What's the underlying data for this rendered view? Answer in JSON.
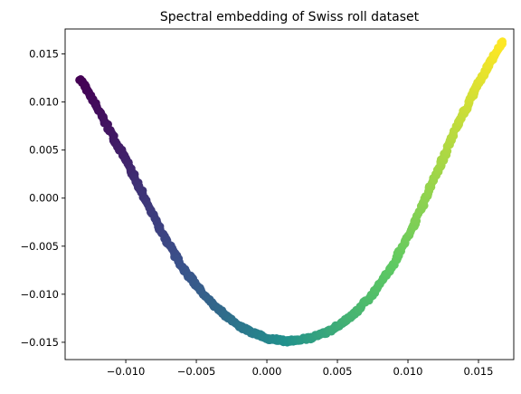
{
  "chart_data": {
    "type": "scatter",
    "title": "Spectral embedding of Swiss roll dataset",
    "xlabel": "",
    "ylabel": "",
    "xlim": [
      -0.0143,
      0.0175
    ],
    "ylim": [
      -0.0168,
      0.0176
    ],
    "xticks": [
      -0.01,
      -0.005,
      0.0,
      0.005,
      0.01,
      0.015
    ],
    "xtick_labels": [
      "−0.010",
      "−0.005",
      "0.000",
      "0.005",
      "0.010",
      "0.015"
    ],
    "yticks": [
      -0.015,
      -0.01,
      -0.005,
      0.0,
      0.005,
      0.01,
      0.015
    ],
    "ytick_labels": [
      "−0.015",
      "−0.010",
      "−0.005",
      "0.000",
      "0.005",
      "0.010",
      "0.015"
    ],
    "grid": false,
    "colormap": "viridis",
    "curve_points": [
      {
        "x": -0.0132,
        "y": 0.0124
      },
      {
        "x": -0.0115,
        "y": 0.008
      },
      {
        "x": -0.01,
        "y": 0.004
      },
      {
        "x": -0.009,
        "y": 0.001
      },
      {
        "x": -0.0075,
        "y": -0.0035
      },
      {
        "x": -0.006,
        "y": -0.0072
      },
      {
        "x": -0.0045,
        "y": -0.01
      },
      {
        "x": -0.003,
        "y": -0.0122
      },
      {
        "x": -0.0015,
        "y": -0.0137
      },
      {
        "x": 0.0,
        "y": -0.0146
      },
      {
        "x": 0.0015,
        "y": -0.0149
      },
      {
        "x": 0.003,
        "y": -0.0146
      },
      {
        "x": 0.0045,
        "y": -0.0138
      },
      {
        "x": 0.006,
        "y": -0.0123
      },
      {
        "x": 0.0075,
        "y": -0.01
      },
      {
        "x": 0.009,
        "y": -0.0068
      },
      {
        "x": 0.0105,
        "y": -0.0025
      },
      {
        "x": 0.012,
        "y": 0.0025
      },
      {
        "x": 0.0135,
        "y": 0.0075
      },
      {
        "x": 0.015,
        "y": 0.012
      },
      {
        "x": 0.0167,
        "y": 0.0163
      }
    ],
    "colors": [
      "#440154",
      "#3b528b",
      "#21918c",
      "#5ec962",
      "#fde725"
    ]
  }
}
